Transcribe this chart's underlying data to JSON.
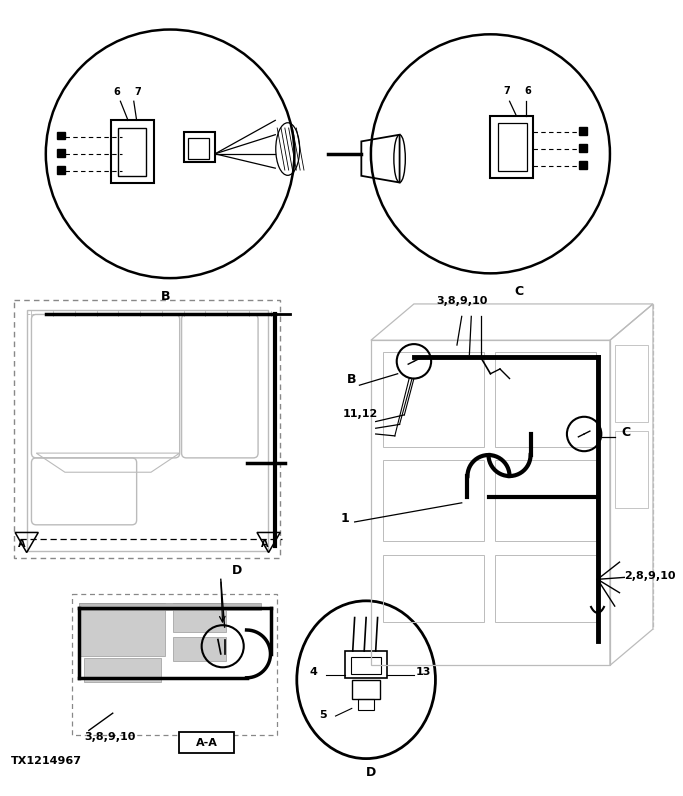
{
  "bg_color": "#ffffff",
  "line_color": "#000000",
  "gray_color": "#bbbbbb",
  "gray2_color": "#999999",
  "fig_width": 6.83,
  "fig_height": 7.96,
  "title": "TX1214967",
  "label_B": "B",
  "label_C": "C",
  "label_D": "D",
  "label_AA": "A-A",
  "label_6": "6",
  "label_7": "7",
  "label_11_12": "11,12",
  "label_1": "1",
  "label_3_8_9_10_top": "3,8,9,10",
  "label_2_8_9_10": "2,8,9,10",
  "label_3_8_9_10_bot": "3,8,9,10",
  "label_4": "4",
  "label_5": "5",
  "label_13": "13"
}
